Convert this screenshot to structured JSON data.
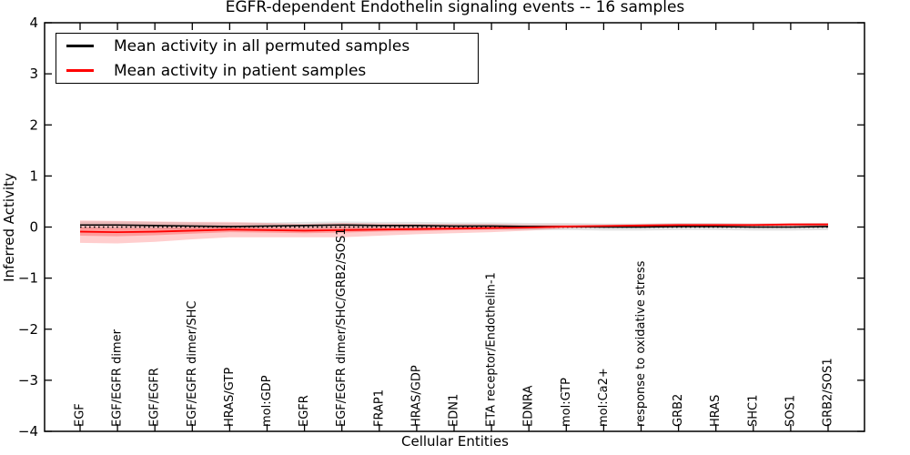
{
  "figure": {
    "title": "EGFR-dependent Endothelin signaling events -- 16 samples",
    "xlabel": "Cellular Entities",
    "ylabel": "Inferred Activity"
  },
  "legend": {
    "items": [
      {
        "label": "Mean activity in all permuted samples",
        "color": "#000000"
      },
      {
        "label": "Mean activity in patient samples",
        "color": "#ff0000"
      }
    ]
  },
  "chart_data": {
    "type": "line",
    "title": "EGFR-dependent Endothelin signaling events -- 16 samples",
    "xlabel": "Cellular Entities",
    "ylabel": "Inferred Activity",
    "ylim": [
      -4,
      4
    ],
    "ytick_values": [
      4,
      3,
      2,
      1,
      0,
      -1,
      -2,
      -3,
      -4
    ],
    "ytick_labels": [
      "4",
      "3",
      "2",
      "1",
      "0",
      "−1",
      "−2",
      "−3",
      "−4"
    ],
    "grid": false,
    "legend_position": "upper left",
    "categories": [
      "EGF",
      "EGF/EGFR dimer",
      "EGF/EGFR",
      "EGF/EGFR dimer/SHC",
      "HRAS/GTP",
      "mol:GDP",
      "EGFR",
      "EGF/EGFR dimer/SHC/GRB2/SOS1",
      "FRAP1",
      "HRAS/GDP",
      "EDN1",
      "ETA receptor/Endothelin-1",
      "EDNRA",
      "mol:GTP",
      "mol:Ca2+",
      "response to oxidative stress",
      "GRB2",
      "HRAS",
      "SHC1",
      "SOS1",
      "GRB2/SOS1"
    ],
    "zero_line": {
      "value": 0,
      "style": "dotted",
      "color": "#000000"
    },
    "series": [
      {
        "name": "Mean activity in all permuted samples",
        "color": "#000000",
        "line_style": "solid",
        "band_color": "rgba(90,90,90,0.16)",
        "mean": [
          0.04,
          0.04,
          0.03,
          0.02,
          0.01,
          0.02,
          0.03,
          0.04,
          0.03,
          0.03,
          0.02,
          0.02,
          0.01,
          0.01,
          0.0,
          0.0,
          0.01,
          0.01,
          0.0,
          0.0,
          0.01
        ],
        "std": [
          0.07,
          0.07,
          0.07,
          0.07,
          0.07,
          0.07,
          0.07,
          0.07,
          0.07,
          0.07,
          0.07,
          0.07,
          0.07,
          0.07,
          0.07,
          0.07,
          0.07,
          0.07,
          0.07,
          0.07,
          0.07
        ]
      },
      {
        "name": "Mean activity in patient samples",
        "color": "#ff0000",
        "line_style": "solid",
        "band_color": "rgba(255,30,30,0.22)",
        "inner_band_color": "rgba(255,30,30,0.28)",
        "mean": [
          -0.09,
          -0.1,
          -0.09,
          -0.07,
          -0.05,
          -0.06,
          -0.07,
          -0.06,
          -0.05,
          -0.04,
          -0.03,
          -0.02,
          -0.01,
          0.01,
          0.02,
          0.03,
          0.04,
          0.04,
          0.04,
          0.05,
          0.05
        ],
        "std": [
          0.22,
          0.22,
          0.2,
          0.17,
          0.15,
          0.14,
          0.13,
          0.14,
          0.12,
          0.1,
          0.09,
          0.08,
          0.06,
          0.04,
          0.03,
          0.03,
          0.03,
          0.03,
          0.03,
          0.03,
          0.03
        ],
        "inner_std": [
          0.08,
          0.08,
          0.07,
          0.06,
          0.05,
          0.05,
          0.05,
          0.05,
          0.04,
          0.04,
          0.03,
          0.03,
          0.02,
          0.015,
          0.01,
          0.01,
          0.01,
          0.01,
          0.01,
          0.01,
          0.01
        ]
      }
    ]
  }
}
